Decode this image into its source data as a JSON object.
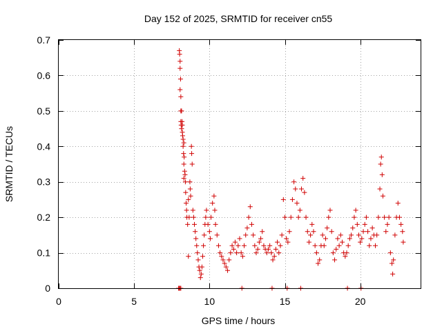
{
  "chart_data": {
    "type": "scatter",
    "title": "Day 152 of 2025, SRMTID for receiver cn55",
    "xlabel": "GPS time / hours",
    "ylabel": "SRMTID / TECUs",
    "xlim": [
      0,
      24
    ],
    "ylim": [
      0,
      0.7
    ],
    "xticks": [
      0,
      5,
      10,
      15,
      20
    ],
    "xtick_labels": [
      "0",
      "5",
      "10",
      "15",
      "20"
    ],
    "yticks": [
      0,
      0.1,
      0.2,
      0.3,
      0.4,
      0.5,
      0.6,
      0.7
    ],
    "ytick_labels": [
      "0",
      "0.1",
      "0.2",
      "0.3",
      "0.4",
      "0.5",
      "0.6",
      "0.7"
    ],
    "grid": true,
    "marker": "plus",
    "color": "#d00000",
    "series": [
      {
        "name": "SRMTID",
        "points": [
          [
            7.95,
            0.0
          ],
          [
            8.0,
            0.0
          ],
          [
            8.05,
            0.0
          ],
          [
            8.1,
            0.0
          ],
          [
            8.0,
            0.67
          ],
          [
            8.02,
            0.66
          ],
          [
            8.05,
            0.64
          ],
          [
            8.05,
            0.62
          ],
          [
            8.08,
            0.59
          ],
          [
            8.05,
            0.56
          ],
          [
            8.1,
            0.54
          ],
          [
            8.1,
            0.5
          ],
          [
            8.15,
            0.5
          ],
          [
            8.1,
            0.47
          ],
          [
            8.12,
            0.46
          ],
          [
            8.18,
            0.47
          ],
          [
            8.2,
            0.46
          ],
          [
            8.15,
            0.45
          ],
          [
            8.2,
            0.44
          ],
          [
            8.22,
            0.43
          ],
          [
            8.25,
            0.42
          ],
          [
            8.25,
            0.4
          ],
          [
            8.28,
            0.38
          ],
          [
            8.3,
            0.41
          ],
          [
            8.32,
            0.37
          ],
          [
            8.3,
            0.35
          ],
          [
            8.35,
            0.33
          ],
          [
            8.3,
            0.31
          ],
          [
            8.38,
            0.32
          ],
          [
            8.4,
            0.3
          ],
          [
            8.42,
            0.27
          ],
          [
            8.45,
            0.24
          ],
          [
            8.48,
            0.22
          ],
          [
            8.5,
            0.2
          ],
          [
            8.55,
            0.18
          ],
          [
            8.6,
            0.09
          ],
          [
            8.6,
            0.25
          ],
          [
            8.65,
            0.2
          ],
          [
            8.7,
            0.3
          ],
          [
            8.72,
            0.28
          ],
          [
            8.75,
            0.26
          ],
          [
            8.8,
            0.4
          ],
          [
            8.82,
            0.38
          ],
          [
            8.85,
            0.35
          ],
          [
            8.9,
            0.22
          ],
          [
            8.95,
            0.2
          ],
          [
            9.0,
            0.18
          ],
          [
            9.05,
            0.16
          ],
          [
            9.1,
            0.14
          ],
          [
            9.15,
            0.12
          ],
          [
            9.2,
            0.1
          ],
          [
            9.25,
            0.08
          ],
          [
            9.3,
            0.06
          ],
          [
            9.35,
            0.05
          ],
          [
            9.4,
            0.03
          ],
          [
            9.45,
            0.04
          ],
          [
            9.5,
            0.06
          ],
          [
            9.55,
            0.09
          ],
          [
            9.6,
            0.12
          ],
          [
            9.65,
            0.15
          ],
          [
            9.7,
            0.18
          ],
          [
            9.75,
            0.2
          ],
          [
            9.8,
            0.22
          ],
          [
            9.9,
            0.18
          ],
          [
            10.0,
            0.16
          ],
          [
            10.05,
            0.14
          ],
          [
            10.1,
            0.2
          ],
          [
            10.2,
            0.24
          ],
          [
            10.3,
            0.26
          ],
          [
            10.35,
            0.22
          ],
          [
            10.4,
            0.18
          ],
          [
            10.5,
            0.15
          ],
          [
            10.6,
            0.12
          ],
          [
            10.7,
            0.1
          ],
          [
            10.8,
            0.09
          ],
          [
            10.9,
            0.08
          ],
          [
            11.0,
            0.07
          ],
          [
            11.1,
            0.06
          ],
          [
            11.2,
            0.05
          ],
          [
            11.3,
            0.08
          ],
          [
            11.4,
            0.1
          ],
          [
            11.5,
            0.12
          ],
          [
            11.6,
            0.11
          ],
          [
            11.7,
            0.13
          ],
          [
            11.8,
            0.1
          ],
          [
            11.9,
            0.12
          ],
          [
            12.0,
            0.14
          ],
          [
            12.1,
            0.1
          ],
          [
            12.15,
            0.0
          ],
          [
            12.2,
            0.09
          ],
          [
            12.3,
            0.12
          ],
          [
            12.4,
            0.15
          ],
          [
            12.5,
            0.17
          ],
          [
            12.6,
            0.2
          ],
          [
            12.7,
            0.23
          ],
          [
            12.8,
            0.18
          ],
          [
            12.9,
            0.15
          ],
          [
            13.0,
            0.12
          ],
          [
            13.1,
            0.1
          ],
          [
            13.2,
            0.11
          ],
          [
            13.3,
            0.13
          ],
          [
            13.4,
            0.14
          ],
          [
            13.5,
            0.16
          ],
          [
            13.6,
            0.12
          ],
          [
            13.7,
            0.11
          ],
          [
            13.8,
            0.1
          ],
          [
            13.9,
            0.11
          ],
          [
            14.0,
            0.12
          ],
          [
            14.1,
            0.1
          ],
          [
            14.15,
            0.0
          ],
          [
            14.2,
            0.08
          ],
          [
            14.3,
            0.09
          ],
          [
            14.4,
            0.11
          ],
          [
            14.5,
            0.13
          ],
          [
            14.6,
            0.1
          ],
          [
            14.7,
            0.12
          ],
          [
            14.8,
            0.15
          ],
          [
            14.9,
            0.25
          ],
          [
            15.0,
            0.2
          ],
          [
            15.1,
            0.14
          ],
          [
            15.15,
            0.0
          ],
          [
            15.2,
            0.13
          ],
          [
            15.3,
            0.16
          ],
          [
            15.4,
            0.2
          ],
          [
            15.5,
            0.25
          ],
          [
            15.6,
            0.3
          ],
          [
            15.7,
            0.28
          ],
          [
            15.8,
            0.24
          ],
          [
            15.9,
            0.2
          ],
          [
            16.0,
            0.22
          ],
          [
            16.05,
            0.0
          ],
          [
            16.1,
            0.28
          ],
          [
            16.2,
            0.31
          ],
          [
            16.3,
            0.27
          ],
          [
            16.4,
            0.2
          ],
          [
            16.5,
            0.16
          ],
          [
            16.6,
            0.13
          ],
          [
            16.7,
            0.15
          ],
          [
            16.8,
            0.18
          ],
          [
            16.9,
            0.16
          ],
          [
            17.0,
            0.12
          ],
          [
            17.1,
            0.1
          ],
          [
            17.2,
            0.07
          ],
          [
            17.3,
            0.08
          ],
          [
            17.4,
            0.12
          ],
          [
            17.5,
            0.15
          ],
          [
            17.6,
            0.12
          ],
          [
            17.7,
            0.14
          ],
          [
            17.8,
            0.17
          ],
          [
            17.9,
            0.2
          ],
          [
            18.0,
            0.22
          ],
          [
            18.1,
            0.16
          ],
          [
            18.2,
            0.1
          ],
          [
            18.3,
            0.08
          ],
          [
            18.4,
            0.11
          ],
          [
            18.5,
            0.14
          ],
          [
            18.6,
            0.12
          ],
          [
            18.7,
            0.15
          ],
          [
            18.8,
            0.13
          ],
          [
            18.9,
            0.1
          ],
          [
            19.0,
            0.09
          ],
          [
            19.1,
            0.1
          ],
          [
            19.15,
            0.0
          ],
          [
            19.2,
            0.12
          ],
          [
            19.3,
            0.14
          ],
          [
            19.4,
            0.15
          ],
          [
            19.5,
            0.17
          ],
          [
            19.6,
            0.2
          ],
          [
            19.7,
            0.22
          ],
          [
            19.8,
            0.18
          ],
          [
            19.9,
            0.15
          ],
          [
            20.0,
            0.13
          ],
          [
            20.05,
            0.0
          ],
          [
            20.1,
            0.14
          ],
          [
            20.2,
            0.16
          ],
          [
            20.3,
            0.18
          ],
          [
            20.4,
            0.2
          ],
          [
            20.5,
            0.16
          ],
          [
            20.6,
            0.12
          ],
          [
            20.7,
            0.14
          ],
          [
            20.8,
            0.17
          ],
          [
            20.9,
            0.15
          ],
          [
            21.0,
            0.12
          ],
          [
            21.1,
            0.15
          ],
          [
            21.2,
            0.2
          ],
          [
            21.3,
            0.28
          ],
          [
            21.35,
            0.35
          ],
          [
            21.4,
            0.37
          ],
          [
            21.45,
            0.32
          ],
          [
            21.5,
            0.26
          ],
          [
            21.6,
            0.2
          ],
          [
            21.7,
            0.16
          ],
          [
            21.8,
            0.18
          ],
          [
            21.9,
            0.2
          ],
          [
            22.0,
            0.1
          ],
          [
            22.1,
            0.07
          ],
          [
            22.15,
            0.04
          ],
          [
            22.2,
            0.08
          ],
          [
            22.3,
            0.15
          ],
          [
            22.4,
            0.2
          ],
          [
            22.5,
            0.24
          ],
          [
            22.6,
            0.2
          ],
          [
            22.7,
            0.18
          ],
          [
            22.8,
            0.16
          ],
          [
            22.85,
            0.13
          ]
        ]
      }
    ]
  }
}
